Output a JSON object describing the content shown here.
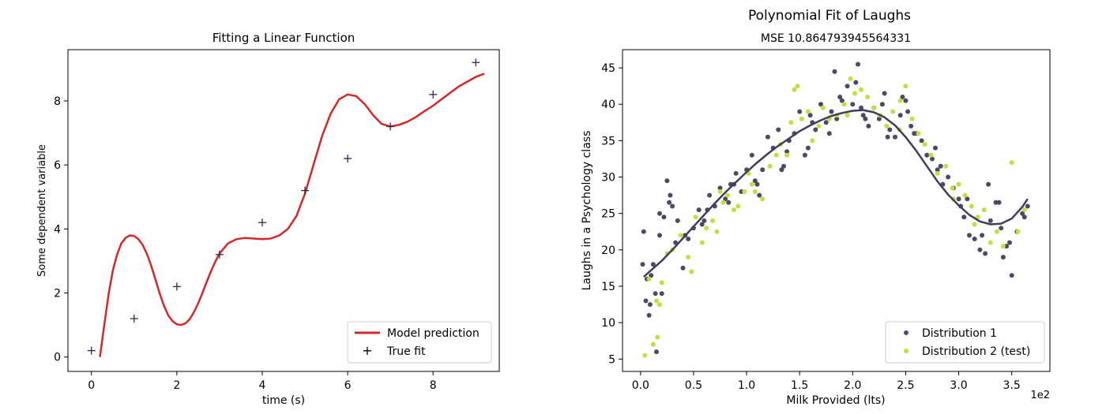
{
  "colors": {
    "model_line": "#d62728",
    "true_fit_marker": "#2b2b45",
    "distribution_1": "#4a4a66",
    "distribution_2": "#c7dc3f",
    "poly_line": "#3f3f5c"
  },
  "chart_data": [
    {
      "type": "line",
      "title": "Fitting a Linear Function",
      "xlabel": "time (s)",
      "ylabel": "Some dependent variable",
      "xlim": [
        -0.55,
        9.55
      ],
      "ylim": [
        -0.45,
        9.6
      ],
      "xticks": [
        0,
        2,
        4,
        6,
        8
      ],
      "yticks": [
        0,
        2,
        4,
        6,
        8
      ],
      "legend_position": "lower right",
      "series": [
        {
          "name": "Model prediction",
          "kind": "line",
          "x": [
            0.2,
            0.3,
            0.4,
            0.5,
            0.6,
            0.7,
            0.8,
            0.9,
            1.0,
            1.1,
            1.2,
            1.3,
            1.4,
            1.5,
            1.6,
            1.7,
            1.8,
            1.9,
            2.0,
            2.1,
            2.2,
            2.3,
            2.4,
            2.5,
            2.6,
            2.7,
            2.8,
            2.9,
            3.0,
            3.2,
            3.4,
            3.6,
            3.8,
            4.0,
            4.2,
            4.4,
            4.6,
            4.8,
            5.0,
            5.2,
            5.4,
            5.6,
            5.8,
            6.0,
            6.2,
            6.4,
            6.6,
            6.8,
            7.0,
            7.2,
            7.4,
            7.6,
            7.8,
            8.0,
            8.2,
            8.4,
            8.6,
            8.8,
            9.0,
            9.2
          ],
          "values": [
            0.0,
            1.0,
            1.95,
            2.7,
            3.2,
            3.55,
            3.72,
            3.8,
            3.78,
            3.68,
            3.5,
            3.22,
            2.85,
            2.42,
            1.98,
            1.6,
            1.3,
            1.12,
            1.02,
            1.0,
            1.05,
            1.18,
            1.4,
            1.68,
            2.0,
            2.35,
            2.68,
            2.98,
            3.23,
            3.55,
            3.68,
            3.72,
            3.7,
            3.68,
            3.7,
            3.8,
            4.0,
            4.4,
            5.1,
            6.0,
            6.9,
            7.6,
            8.05,
            8.2,
            8.15,
            7.9,
            7.55,
            7.28,
            7.2,
            7.25,
            7.35,
            7.5,
            7.68,
            7.85,
            8.05,
            8.25,
            8.45,
            8.6,
            8.75,
            8.85
          ]
        },
        {
          "name": "True fit",
          "kind": "marker",
          "x": [
            0,
            1,
            2,
            3,
            4,
            5,
            6,
            7,
            8,
            9
          ],
          "values": [
            0.2,
            1.2,
            2.2,
            3.2,
            4.2,
            5.2,
            6.2,
            7.2,
            8.2,
            9.2
          ]
        }
      ]
    },
    {
      "type": "scatter",
      "title": "Polynomial Fit of Laughs",
      "subtitle": "MSE 10.864793945564331",
      "xlabel": "Milk Provided (lts)",
      "ylabel": "Laughs in a Psychology class",
      "x_scale_note": "1e2",
      "xlim": [
        -0.17,
        3.86
      ],
      "ylim": [
        3.3,
        47.5
      ],
      "xticks": [
        "0.0",
        "0.5",
        "1.0",
        "1.5",
        "2.0",
        "2.5",
        "3.0",
        "3.5"
      ],
      "xtick_values": [
        0.0,
        0.5,
        1.0,
        1.5,
        2.0,
        2.5,
        3.0,
        3.5
      ],
      "yticks": [
        5,
        10,
        15,
        20,
        25,
        30,
        35,
        40,
        45
      ],
      "legend_position": "lower right",
      "series": [
        {
          "name": "Distribution 1",
          "kind": "scatter",
          "x": [
            0.03,
            0.05,
            0.08,
            0.1,
            0.12,
            0.15,
            0.18,
            0.2,
            0.22,
            0.25,
            0.28,
            0.3,
            0.35,
            0.4,
            0.45,
            0.5,
            0.55,
            0.6,
            0.65,
            0.7,
            0.75,
            0.8,
            0.85,
            0.9,
            0.95,
            1.0,
            1.05,
            1.1,
            1.15,
            1.2,
            1.25,
            1.3,
            1.35,
            1.4,
            1.45,
            1.5,
            1.55,
            1.6,
            1.65,
            1.7,
            1.75,
            1.8,
            1.85,
            1.9,
            1.95,
            2.0,
            2.05,
            2.1,
            2.15,
            2.2,
            2.25,
            2.3,
            2.35,
            2.4,
            2.45,
            2.5,
            2.55,
            2.6,
            2.65,
            2.7,
            2.75,
            2.8,
            2.85,
            2.9,
            2.95,
            3.0,
            3.05,
            3.1,
            3.15,
            3.2,
            3.25,
            3.3,
            3.35,
            3.4,
            3.45,
            3.5,
            3.55,
            3.6,
            3.65,
            0.06,
            0.14,
            0.27,
            0.42,
            0.63,
            0.88,
            1.12,
            1.38,
            1.62,
            1.88,
            2.08,
            2.28,
            2.52,
            2.78,
            3.02,
            3.22,
            3.42,
            3.62,
            0.09,
            0.33,
            0.58,
            0.83,
            1.08,
            1.33,
            1.58,
            1.83,
            2.03,
            2.33,
            2.58,
            2.83,
            3.08,
            3.28,
            3.48,
            0.02,
            0.18,
            1.78,
            2.12,
            2.47,
            3.38
          ],
          "values": [
            22.5,
            13.0,
            11.0,
            16.5,
            18.0,
            6.0,
            22.0,
            14.0,
            24.5,
            29.5,
            27.5,
            26.0,
            24.0,
            17.5,
            21.5,
            23.0,
            25.5,
            24.0,
            27.5,
            26.0,
            28.5,
            27.0,
            29.0,
            30.5,
            28.0,
            31.0,
            33.0,
            29.0,
            31.0,
            35.5,
            34.0,
            36.5,
            31.5,
            35.0,
            36.0,
            39.0,
            33.0,
            38.5,
            36.5,
            40.0,
            37.5,
            39.0,
            38.0,
            40.5,
            42.5,
            40.0,
            45.5,
            38.5,
            37.0,
            39.5,
            38.0,
            41.5,
            36.5,
            35.5,
            38.5,
            40.5,
            37.0,
            36.0,
            35.0,
            33.0,
            32.5,
            31.0,
            29.0,
            30.0,
            28.5,
            27.0,
            24.5,
            22.0,
            21.5,
            20.0,
            19.5,
            24.0,
            26.5,
            23.0,
            20.5,
            16.5,
            22.5,
            25.0,
            26.0,
            16.0,
            14.0,
            26.5,
            22.0,
            25.5,
            29.0,
            27.5,
            33.5,
            37.5,
            41.0,
            39.5,
            40.0,
            39.0,
            34.0,
            26.0,
            22.0,
            19.0,
            24.5,
            12.5,
            21.0,
            23.5,
            26.5,
            29.5,
            31.0,
            34.0,
            44.5,
            43.0,
            35.5,
            36.0,
            31.5,
            27.0,
            29.0,
            21.0,
            18.0,
            25.0,
            36.0,
            38.0,
            41.0,
            26.5
          ]
        },
        {
          "name": "Distribution 2 (test)",
          "kind": "scatter",
          "x": [
            0.04,
            0.08,
            0.12,
            0.16,
            0.2,
            0.25,
            0.3,
            0.38,
            0.45,
            0.52,
            0.58,
            0.62,
            0.68,
            0.72,
            0.78,
            0.82,
            0.88,
            0.92,
            0.98,
            1.02,
            1.08,
            1.15,
            1.22,
            1.28,
            1.32,
            1.38,
            1.42,
            1.48,
            1.52,
            1.58,
            1.62,
            1.68,
            1.72,
            1.78,
            1.85,
            1.92,
            1.98,
            2.02,
            2.08,
            2.14,
            2.2,
            2.26,
            2.32,
            2.38,
            2.44,
            2.5,
            2.56,
            2.62,
            2.68,
            2.74,
            2.8,
            2.88,
            2.94,
            3.0,
            3.06,
            3.12,
            3.18,
            3.24,
            3.3,
            3.36,
            3.42,
            3.5,
            3.56,
            3.62,
            0.15,
            0.18,
            0.48,
            0.75,
            1.05,
            1.45,
            1.95,
            2.45,
            2.95,
            3.15
          ],
          "values": [
            5.5,
            16.0,
            7.0,
            8.0,
            15.5,
            19.5,
            20.0,
            22.0,
            19.0,
            24.5,
            21.0,
            23.0,
            24.0,
            22.5,
            26.5,
            27.5,
            25.5,
            26.0,
            28.0,
            30.5,
            28.0,
            27.0,
            31.5,
            33.0,
            34.5,
            33.0,
            37.5,
            42.5,
            38.0,
            39.0,
            35.0,
            37.0,
            39.5,
            38.0,
            38.5,
            40.0,
            43.5,
            41.5,
            42.0,
            41.0,
            39.5,
            38.5,
            37.0,
            39.0,
            36.5,
            42.5,
            38.0,
            36.0,
            34.5,
            33.0,
            30.5,
            31.5,
            28.5,
            29.0,
            27.5,
            26.0,
            24.5,
            25.5,
            21.0,
            22.5,
            20.5,
            32.0,
            22.5,
            25.5,
            13.0,
            12.5,
            17.0,
            28.0,
            29.0,
            42.0,
            38.5,
            40.5,
            27.0,
            23.5
          ]
        },
        {
          "name": "",
          "kind": "line",
          "x": [
            0.03,
            0.1,
            0.2,
            0.3,
            0.4,
            0.5,
            0.6,
            0.7,
            0.8,
            0.9,
            1.0,
            1.1,
            1.2,
            1.3,
            1.4,
            1.5,
            1.6,
            1.7,
            1.8,
            1.9,
            2.0,
            2.1,
            2.2,
            2.3,
            2.4,
            2.5,
            2.6,
            2.7,
            2.8,
            2.9,
            3.0,
            3.1,
            3.2,
            3.3,
            3.4,
            3.5,
            3.6,
            3.65
          ],
          "values": [
            16.3,
            17.2,
            18.5,
            20.0,
            21.6,
            23.2,
            24.8,
            26.4,
            27.9,
            29.3,
            30.7,
            32.0,
            33.2,
            34.3,
            35.3,
            36.3,
            37.1,
            37.8,
            38.4,
            38.8,
            39.1,
            39.2,
            38.9,
            38.2,
            37.1,
            35.5,
            33.6,
            31.5,
            29.4,
            27.6,
            26.1,
            24.8,
            23.9,
            23.5,
            23.6,
            24.3,
            25.9,
            27.0
          ]
        }
      ]
    }
  ]
}
